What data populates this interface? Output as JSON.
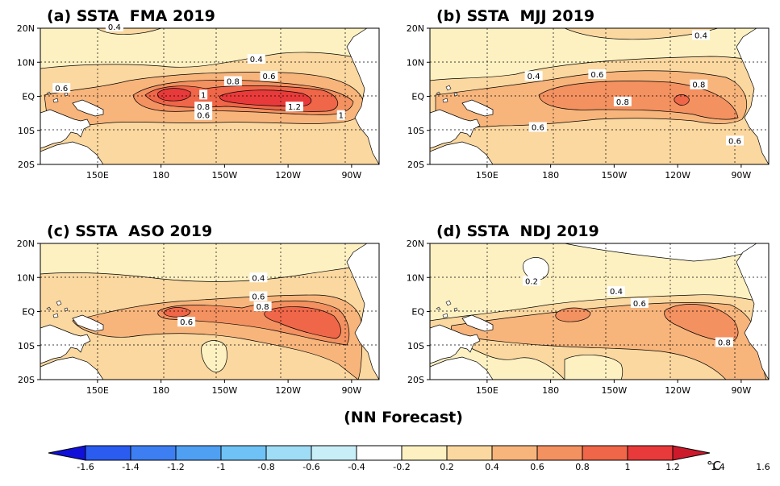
{
  "figure": {
    "footer": "(NN Forecast)",
    "colorbar_unit": "°C",
    "colorbar_levels": [
      "-1.6",
      "-1.4",
      "-1.2",
      "-1",
      "-0.8",
      "-0.6",
      "-0.4",
      "-0.2",
      "0.2",
      "0.4",
      "0.6",
      "0.8",
      "1",
      "1.2",
      "1.4",
      "1.6"
    ],
    "colorbar_colors": [
      "#1010d8",
      "#2b5cf0",
      "#3d7ef2",
      "#4f9ff3",
      "#6ec2f5",
      "#9fdcf6",
      "#c8eef8",
      "#ffffff",
      "#fdf1c2",
      "#fbd8a0",
      "#f7b57c",
      "#f39160",
      "#ef6648",
      "#e83a3a",
      "#cc1a2b"
    ]
  },
  "axes": {
    "lat_labels": [
      "20N",
      "10N",
      "EQ",
      "10S",
      "20S"
    ],
    "lon_labels": [
      "150E",
      "180",
      "150W",
      "120W",
      "90W"
    ]
  },
  "panels": [
    {
      "title": "(a) SSTA  FMA 2019",
      "contour_labels": [
        {
          "text": "0.4",
          "lon": 158,
          "lat": 20.5
        },
        {
          "text": "0.4",
          "lon": 225,
          "lat": 11
        },
        {
          "text": "0.6",
          "lon": 231,
          "lat": 6
        },
        {
          "text": "0.6",
          "lon": 133,
          "lat": 2.5
        },
        {
          "text": "0.8",
          "lon": 214,
          "lat": 4.5
        },
        {
          "text": "1",
          "lon": 200,
          "lat": 0.5
        },
        {
          "text": "0.8",
          "lon": 200,
          "lat": -3
        },
        {
          "text": "0.6",
          "lon": 200,
          "lat": -5.5
        },
        {
          "text": "1.2",
          "lon": 243,
          "lat": -3
        },
        {
          "text": "1",
          "lon": 265,
          "lat": -5.5
        }
      ]
    },
    {
      "title": "(b) SSTA  MJJ 2019",
      "contour_labels": [
        {
          "text": "0.4",
          "lon": 251,
          "lat": 18
        },
        {
          "text": "0.4",
          "lon": 172,
          "lat": 6
        },
        {
          "text": "0.6",
          "lon": 202,
          "lat": 6.5
        },
        {
          "text": "0.8",
          "lon": 250,
          "lat": 3.5
        },
        {
          "text": "0.8",
          "lon": 214,
          "lat": -1.5
        },
        {
          "text": "0.6",
          "lon": 174,
          "lat": -9
        },
        {
          "text": "0.6",
          "lon": 267,
          "lat": -13
        }
      ]
    },
    {
      "title": "(c) SSTA  ASO 2019",
      "contour_labels": [
        {
          "text": "0.4",
          "lon": 226,
          "lat": 10
        },
        {
          "text": "0.6",
          "lon": 226,
          "lat": 4.5
        },
        {
          "text": "0.8",
          "lon": 228,
          "lat": 1.5
        },
        {
          "text": "0.6",
          "lon": 192,
          "lat": -3
        }
      ]
    },
    {
      "title": "(d) SSTA  NDJ 2019",
      "contour_labels": [
        {
          "text": "0.2",
          "lon": 171,
          "lat": 9
        },
        {
          "text": "0.4",
          "lon": 211,
          "lat": 6
        },
        {
          "text": "0.6",
          "lon": 222,
          "lat": 2.5
        },
        {
          "text": "0.8",
          "lon": 262,
          "lat": -9
        }
      ]
    }
  ]
}
